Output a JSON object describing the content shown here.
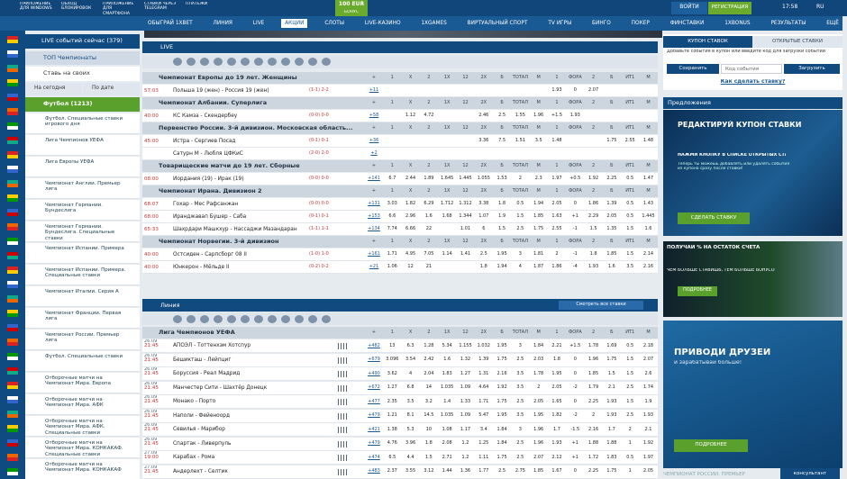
{
  "topbar": {
    "links": [
      "ПРИЛОЖЕНИЕ ДЛЯ WINDOWS",
      "ОБХОД БЛОКИРОВОК",
      "ПРИЛОЖЕНИЕ ДЛЯ СМАРТФОНА",
      "СТАВКИ ЧЕРЕЗ TELEGRAM",
      "ПЛАТЕЖИ"
    ],
    "bonus": "100 EUR",
    "bonus_sub": "БОНУС",
    "login": "ВОЙТИ",
    "register": "РЕГИСТРАЦИЯ",
    "time": "17:58",
    "lang": "RU"
  },
  "nav": [
    "ОБЫГРАЙ 1XBET",
    "ЛИНИЯ",
    "LIVE",
    "АКЦИИ",
    "СЛОТЫ",
    "LIVE-КАЗИНО",
    "1XGAMES",
    "ВИРТУАЛЬНЫЙ СПОРТ",
    "TV ИГРЫ",
    "БИНГО",
    "ПОКЕР",
    "ФИНСТАВКИ",
    "1XBONUS",
    "РЕЗУЛЬТАТЫ",
    "ЕЩЁ"
  ],
  "sidebar": {
    "live_now": "LIVE событий сейчас (379)",
    "top": "ТОП Чемпионаты",
    "own": "Ставь на своих",
    "today": "На сегодня",
    "by_date": "По дате",
    "sport": "Футбол (1213)",
    "leagues": [
      "Футбол. Специальные ставки игрового дня",
      "Лига Чемпионов УЕФА",
      "Лига Европы УЕФА",
      "Чемпионат Англии. Премьер лига",
      "Чемпионат Германии. Бундеслига",
      "Чемпионат Германии. Бундеслига. Специальные ставки",
      "Чемпионат Испании. Примера",
      "Чемпионат Испании. Примера. Специальные ставки",
      "Чемпионат Италии. Серия А",
      "Чемпионат Франции. Первая лига",
      "Чемпионат России. Премьер лига",
      "Футбол. Специальные ставки",
      "Отборочные матчи на Чемпионат Мира. Европа",
      "Отборочные матчи на Чемпионат Мира. АФК",
      "Отборочные матчи на Чемпионат Мира. АФК. Специальные ставки",
      "Отборочные матчи на Чемпионат Мира. КОНКАКАФ. Специальные ставки",
      "Отборочные матчи на Чемпионат Мира. КОНКАКАФ"
    ]
  },
  "live": {
    "title": "LIVE",
    "columns": [
      "+",
      "1",
      "X",
      "2",
      "1X",
      "12",
      "2X",
      "Б",
      "ТОТАЛ",
      "М",
      "1",
      "ФОРА",
      "2",
      "Б",
      "ИТ1",
      "М"
    ],
    "leagues": [
      {
        "name": "Чемпионат Европы до 19 лет. Женщины",
        "matches": [
          {
            "time": "57:03",
            "teams": "Польша 19 (жен) - Россия 19 (жен)",
            "score": "(1-1) 2-2",
            "more": "+11",
            "odds": [
              null,
              null,
              null,
              null,
              null,
              null,
              null,
              null,
              null,
              "1.93",
              "0",
              "2.07",
              null,
              null,
              null
            ]
          }
        ]
      },
      {
        "name": "Чемпионат Албании. Суперлига",
        "matches": [
          {
            "time": "40:00",
            "teams": "КС Камза - Скендербеу",
            "score": "(0-0) 0-0",
            "more": "+58",
            "odds": [
              null,
              "1.12",
              "4.72",
              null,
              null,
              "2.46",
              "2.5",
              "1.55",
              "1.96",
              "+1.5",
              "1.93",
              null,
              null,
              null,
              null
            ]
          }
        ]
      },
      {
        "name": "Первенство России. 3-й дивизион. Московская область...",
        "matches": [
          {
            "time": "45:00",
            "teams": "Истра - Сергиев Посад",
            "score": "(0-1) 0-1",
            "more": "+36",
            "odds": [
              null,
              null,
              null,
              null,
              null,
              "3.36",
              "7.5",
              "1.51",
              "3.5",
              "1.48",
              null,
              null,
              "1.75",
              "2.55",
              "1.48"
            ]
          },
          {
            "time": null,
            "teams": "Сатурн М - Любля ЦФКиС",
            "score": "(2-0) 2-0",
            "more": "+2",
            "odds": [
              null,
              null,
              null,
              null,
              null,
              null,
              null,
              null,
              null,
              null,
              null,
              null,
              null,
              null,
              null
            ]
          }
        ]
      },
      {
        "name": "Товарищеские матчи до 19 лет. Сборные",
        "matches": [
          {
            "time": "08:00",
            "teams": "Иордания (19) - Ирак (19)",
            "score": "(0-0) 0-0",
            "more": "+141",
            "odds": [
              "6.7",
              "2.44",
              "1.89",
              "1.645",
              "1.445",
              "1.055",
              "1.53",
              "2",
              "2.3",
              "1.97",
              "+0.5",
              "1.92",
              "2.25",
              "0.5",
              "1.47"
            ]
          }
        ]
      },
      {
        "name": "Чемпионат Ирана. Дивизион 2",
        "matches": [
          {
            "time": "68:07",
            "teams": "Гохар - Мес Рафсанжан",
            "score": "(0-0) 0-0",
            "more": "+131",
            "odds": [
              "3.03",
              "1.82",
              "6.29",
              "1.712",
              "1.312",
              "3.38",
              "1.8",
              "0.5",
              "1.94",
              "2.05",
              "0",
              "1.86",
              "1.39",
              "0.5",
              "1.43"
            ]
          },
          {
            "time": "68:00",
            "teams": "Иранджавап Бушер - Саба",
            "score": "(0-1) 0-1",
            "more": "+153",
            "odds": [
              "6.6",
              "2.96",
              "1.6",
              "1.68",
              "1.344",
              "1.07",
              "1.9",
              "1.5",
              "1.85",
              "1.63",
              "+1",
              "2.29",
              "2.05",
              "0.5",
              "1.445"
            ]
          },
          {
            "time": "65:33",
            "teams": "Шахрдари Машкхур - Нассаджи Мазандаран",
            "score": "(1-1) 1-1",
            "more": "+134",
            "odds": [
              "7.74",
              "6.66",
              "22",
              null,
              "1.01",
              "6",
              "1.5",
              "2.5",
              "1.75",
              "2.55",
              "-1",
              "1.5",
              "1.35",
              "1.5",
              "1.6"
            ]
          }
        ]
      },
      {
        "name": "Чемпионат Норвегии. 3-й дивизион",
        "matches": [
          {
            "time": "40:00",
            "teams": "Остсиден - Сарпсборг 08 II",
            "score": "(1-0) 1-0",
            "more": "+161",
            "odds": [
              "1.71",
              "4.95",
              "7.05",
              "1.14",
              "1.41",
              "2.5",
              "1.95",
              "3",
              "1.81",
              "2",
              "-1",
              "1.8",
              "1.85",
              "1.5",
              "2.14"
            ]
          },
          {
            "time": "40:00",
            "teams": "Юнкерон - Мёльде II",
            "score": "(0-2) 0-2",
            "more": "+21",
            "odds": [
              "1.06",
              "12",
              "21",
              null,
              null,
              "1.8",
              "1.94",
              "4",
              "1.87",
              "1.86",
              "-4",
              "1.93",
              "1.6",
              "3.5",
              "2.16"
            ]
          }
        ]
      }
    ]
  },
  "line": {
    "title": "Линия",
    "all_bets": "Смотреть все ставки",
    "league": "Лига Чемпионов УЕФА",
    "columns": [
      "+",
      "1",
      "X",
      "2",
      "1X",
      "12",
      "2X",
      "Б",
      "ТОТАЛ",
      "М",
      "1",
      "ФОРА",
      "2",
      "Б",
      "ИТ1",
      "М"
    ],
    "matches": [
      {
        "date": "26.09",
        "time": "21:45",
        "teams": "АПОЭЛ - Тоттенхэм Хотспур",
        "more": "+482",
        "odds": [
          "13",
          "6.3",
          "1.28",
          "5.34",
          "1.155",
          "1.032",
          "1.95",
          "3",
          "1.84",
          "2.21",
          "+1.5",
          "1.78",
          "1.69",
          "0.5",
          "2.18"
        ]
      },
      {
        "date": "26.09",
        "time": "21:45",
        "teams": "Бешикташ - Лейпциг",
        "more": "+679",
        "odds": [
          "3.096",
          "3.54",
          "2.42",
          "1.6",
          "1.32",
          "1.39",
          "1.75",
          "2.5",
          "2.03",
          "1.8",
          "0",
          "1.96",
          "1.75",
          "1.5",
          "2.07"
        ]
      },
      {
        "date": "26.09",
        "time": "21:45",
        "teams": "Боруссия - Реал Мадрид",
        "more": "+490",
        "odds": [
          "3.62",
          "4",
          "2.04",
          "1.83",
          "1.27",
          "1.31",
          "2.16",
          "3.5",
          "1.78",
          "1.95",
          "0",
          "1.85",
          "1.5",
          "1.5",
          "2.6"
        ]
      },
      {
        "date": "26.09",
        "time": "21:45",
        "teams": "Манчестер Сити - Шахтёр Донецк",
        "more": "+672",
        "odds": [
          "1.27",
          "6.8",
          "14",
          "1.035",
          "1.09",
          "4.64",
          "1.92",
          "3.5",
          "2",
          "2.05",
          "-2",
          "1.79",
          "2.1",
          "2.5",
          "1.74"
        ]
      },
      {
        "date": "26.09",
        "time": "21:45",
        "teams": "Монако - Порто",
        "more": "+477",
        "odds": [
          "2.35",
          "3.5",
          "3.2",
          "1.4",
          "1.33",
          "1.71",
          "1.75",
          "2.5",
          "2.05",
          "1.65",
          "0",
          "2.25",
          "1.93",
          "1.5",
          "1.9"
        ]
      },
      {
        "date": "26.09",
        "time": "21:45",
        "teams": "Наполи - Фейеноорд",
        "more": "+479",
        "odds": [
          "1.21",
          "8.1",
          "14.5",
          "1.035",
          "1.09",
          "5.47",
          "1.95",
          "3.5",
          "1.95",
          "1.82",
          "-2",
          "2",
          "1.93",
          "2.5",
          "1.93"
        ]
      },
      {
        "date": "26.09",
        "time": "21:45",
        "teams": "Севилья - Марибор",
        "more": "+421",
        "odds": [
          "1.38",
          "5.3",
          "10",
          "1.08",
          "1.17",
          "3.4",
          "1.84",
          "3",
          "1.96",
          "1.7",
          "-1.5",
          "2.16",
          "1.7",
          "2",
          "2.1"
        ]
      },
      {
        "date": "26.09",
        "time": "21:45",
        "teams": "Спартак - Ливерпуль",
        "more": "+479",
        "odds": [
          "4.76",
          "3.96",
          "1.8",
          "2.08",
          "1.2",
          "1.25",
          "1.84",
          "2.5",
          "1.96",
          "1.93",
          "+1",
          "1.88",
          "1.88",
          "1",
          "1.92"
        ]
      },
      {
        "date": "27.09",
        "time": "19:00",
        "teams": "Карабах - Рома",
        "more": "+474",
        "odds": [
          "6.5",
          "4.4",
          "1.5",
          "2.71",
          "1.2",
          "1.11",
          "1.75",
          "2.5",
          "2.07",
          "2.12",
          "+1",
          "1.72",
          "1.83",
          "0.5",
          "1.97"
        ]
      },
      {
        "date": "27.09",
        "time": "21:45",
        "teams": "Андерлехт - Селтик",
        "more": "+483",
        "odds": [
          "2.37",
          "3.55",
          "3.12",
          "1.44",
          "1.36",
          "1.77",
          "2.5",
          "2.75",
          "1.85",
          "1.67",
          "0",
          "2.25",
          "1.75",
          "1",
          "2.05"
        ]
      }
    ]
  },
  "coupon": {
    "tab_coupon": "КУПОН СТАВОК",
    "tab_open": "ОТКРЫТЫЕ СТАВКИ",
    "hint": "Добавьте события в купон или введите код для загрузки событий",
    "save": "Сохранить",
    "code": "Код события",
    "load": "Загрузить",
    "how": "Как сделать ставку?"
  },
  "offers": {
    "title": "Предложения",
    "b1_title": "РЕДАКТИРУЙ КУПОН СТАВКИ",
    "b1_sub": "НАЖМИ КНОПКУ В СПИСКЕ ОТКРЫТЫХ СТАВОК",
    "b1_text": "Теперь ты можешь добавлять или удалять события из купона сразу после ставки!",
    "b1_btn": "СДЕЛАТЬ СТАВКУ",
    "b2_title": "ПОЛУЧАЙ % НА ОСТАТОК СЧЁТА",
    "b2_sub": "ЧЕМ БОЛЬШЕ СТАВИШЬ, ТЕМ БОЛЬШЕ БОНУСОВ!",
    "b2_btn": "ПОДРОБНЕЕ",
    "b3_title": "ПРИВОДИ ДРУЗЕЙ",
    "b3_sub": "и зарабатывай больше!",
    "b3_btn": "ПОДРОБНЕЕ",
    "footer": "ЧЕМПИОНАТ РОССИИ. ПРЕМЬЕР",
    "chat": "консультант"
  }
}
